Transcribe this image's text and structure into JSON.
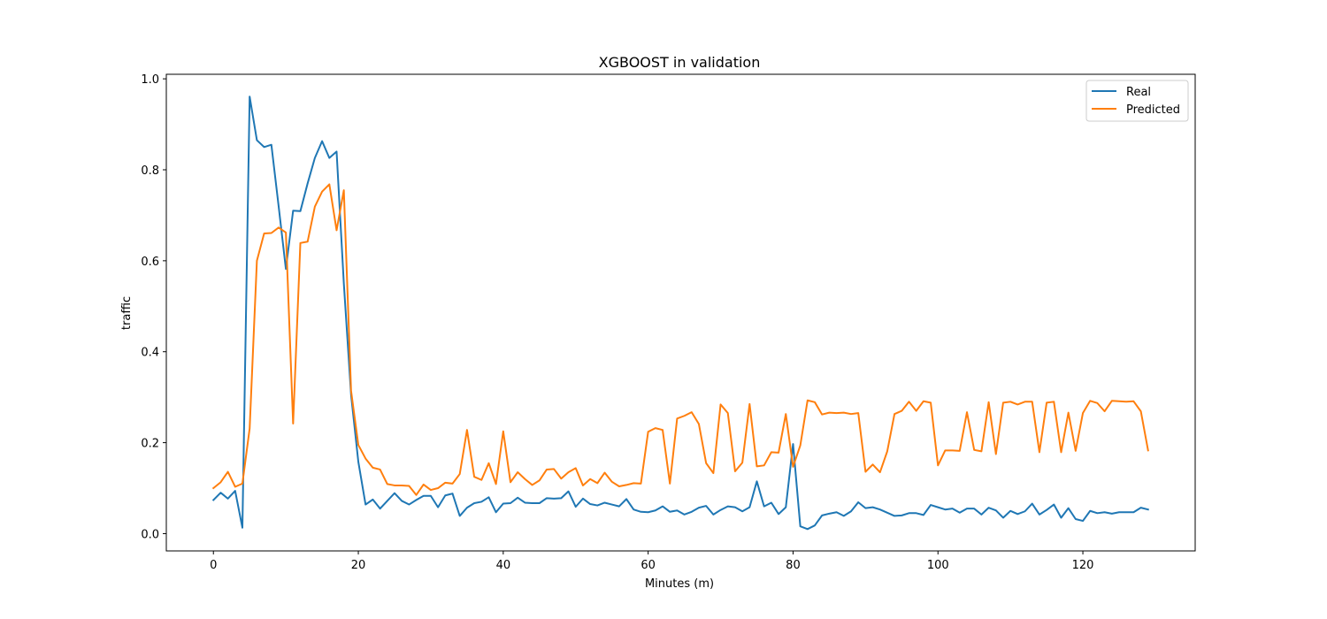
{
  "chart_data": {
    "type": "line",
    "title": "XGBOOST in validation",
    "xlabel": "Minutes (m)",
    "ylabel": "traffic",
    "xlim": [
      -6.5,
      135.5
    ],
    "ylim": [
      -0.038,
      1.01
    ],
    "xticks": [
      0,
      20,
      40,
      60,
      80,
      100,
      120
    ],
    "yticks": [
      0.0,
      0.2,
      0.4,
      0.6,
      0.8,
      1.0
    ],
    "xtick_labels": [
      "0",
      "20",
      "40",
      "60",
      "80",
      "100",
      "120"
    ],
    "ytick_labels": [
      "0.0",
      "0.2",
      "0.4",
      "0.6",
      "0.8",
      "1.0"
    ],
    "grid": false,
    "legend_position": "top-right",
    "x": [
      0,
      1,
      2,
      3,
      4,
      5,
      6,
      7,
      8,
      9,
      10,
      11,
      12,
      13,
      14,
      15,
      16,
      17,
      18,
      19,
      20,
      21,
      22,
      23,
      24,
      25,
      26,
      27,
      28,
      29,
      30,
      31,
      32,
      33,
      34,
      35,
      36,
      37,
      38,
      39,
      40,
      41,
      42,
      43,
      44,
      45,
      46,
      47,
      48,
      49,
      50,
      51,
      52,
      53,
      54,
      55,
      56,
      57,
      58,
      59,
      60,
      61,
      62,
      63,
      64,
      65,
      66,
      67,
      68,
      69,
      70,
      71,
      72,
      73,
      74,
      75,
      76,
      77,
      78,
      79,
      80,
      81,
      82,
      83,
      84,
      85,
      86,
      87,
      88,
      89,
      90,
      91,
      92,
      93,
      94,
      95,
      96,
      97,
      98,
      99,
      100,
      101,
      102,
      103,
      104,
      105,
      106,
      107,
      108,
      109,
      110,
      111,
      112,
      113,
      114,
      115,
      116,
      117,
      118,
      119,
      120,
      121,
      122,
      123,
      124,
      125,
      126,
      127,
      128,
      129
    ],
    "series": [
      {
        "name": "Real",
        "color": "#1f77b4",
        "values": [
          0.074,
          0.09,
          0.077,
          0.094,
          0.013,
          0.961,
          0.865,
          0.85,
          0.855,
          0.72,
          0.582,
          0.71,
          0.709,
          0.77,
          0.826,
          0.863,
          0.826,
          0.84,
          0.55,
          0.305,
          0.158,
          0.064,
          0.075,
          0.055,
          0.072,
          0.089,
          0.072,
          0.064,
          0.074,
          0.083,
          0.083,
          0.058,
          0.084,
          0.088,
          0.039,
          0.057,
          0.067,
          0.07,
          0.08,
          0.047,
          0.066,
          0.067,
          0.079,
          0.068,
          0.067,
          0.067,
          0.078,
          0.077,
          0.078,
          0.093,
          0.059,
          0.077,
          0.065,
          0.062,
          0.068,
          0.064,
          0.06,
          0.076,
          0.053,
          0.048,
          0.047,
          0.051,
          0.06,
          0.048,
          0.051,
          0.042,
          0.048,
          0.057,
          0.061,
          0.042,
          0.052,
          0.06,
          0.058,
          0.049,
          0.058,
          0.115,
          0.06,
          0.068,
          0.043,
          0.058,
          0.197,
          0.016,
          0.01,
          0.018,
          0.04,
          0.044,
          0.047,
          0.039,
          0.049,
          0.069,
          0.056,
          0.058,
          0.053,
          0.046,
          0.039,
          0.04,
          0.045,
          0.045,
          0.041,
          0.063,
          0.058,
          0.053,
          0.055,
          0.046,
          0.055,
          0.055,
          0.042,
          0.057,
          0.051,
          0.035,
          0.05,
          0.043,
          0.049,
          0.066,
          0.042,
          0.052,
          0.064,
          0.035,
          0.056,
          0.032,
          0.028,
          0.05,
          0.045,
          0.047,
          0.044,
          0.047,
          0.047,
          0.047,
          0.057,
          0.053
        ]
      },
      {
        "name": "Predicted",
        "color": "#ff7f0e",
        "values": [
          0.1,
          0.113,
          0.136,
          0.103,
          0.11,
          0.231,
          0.6,
          0.66,
          0.661,
          0.673,
          0.662,
          0.242,
          0.639,
          0.642,
          0.719,
          0.752,
          0.768,
          0.667,
          0.755,
          0.314,
          0.195,
          0.165,
          0.145,
          0.141,
          0.109,
          0.106,
          0.106,
          0.105,
          0.085,
          0.108,
          0.096,
          0.1,
          0.112,
          0.11,
          0.131,
          0.228,
          0.125,
          0.118,
          0.155,
          0.109,
          0.225,
          0.113,
          0.135,
          0.12,
          0.107,
          0.117,
          0.141,
          0.142,
          0.121,
          0.135,
          0.144,
          0.106,
          0.12,
          0.111,
          0.134,
          0.114,
          0.104,
          0.107,
          0.111,
          0.11,
          0.224,
          0.232,
          0.228,
          0.11,
          0.253,
          0.259,
          0.267,
          0.241,
          0.155,
          0.133,
          0.284,
          0.265,
          0.137,
          0.156,
          0.285,
          0.148,
          0.15,
          0.179,
          0.178,
          0.263,
          0.147,
          0.194,
          0.293,
          0.289,
          0.262,
          0.266,
          0.265,
          0.266,
          0.263,
          0.265,
          0.136,
          0.152,
          0.135,
          0.181,
          0.263,
          0.27,
          0.29,
          0.27,
          0.291,
          0.288,
          0.15,
          0.183,
          0.183,
          0.182,
          0.267,
          0.184,
          0.181,
          0.289,
          0.175,
          0.288,
          0.29,
          0.284,
          0.29,
          0.29,
          0.179,
          0.288,
          0.29,
          0.179,
          0.266,
          0.182,
          0.265,
          0.292,
          0.287,
          0.269,
          0.292,
          0.291,
          0.29,
          0.291,
          0.269,
          0.183
        ]
      }
    ]
  }
}
